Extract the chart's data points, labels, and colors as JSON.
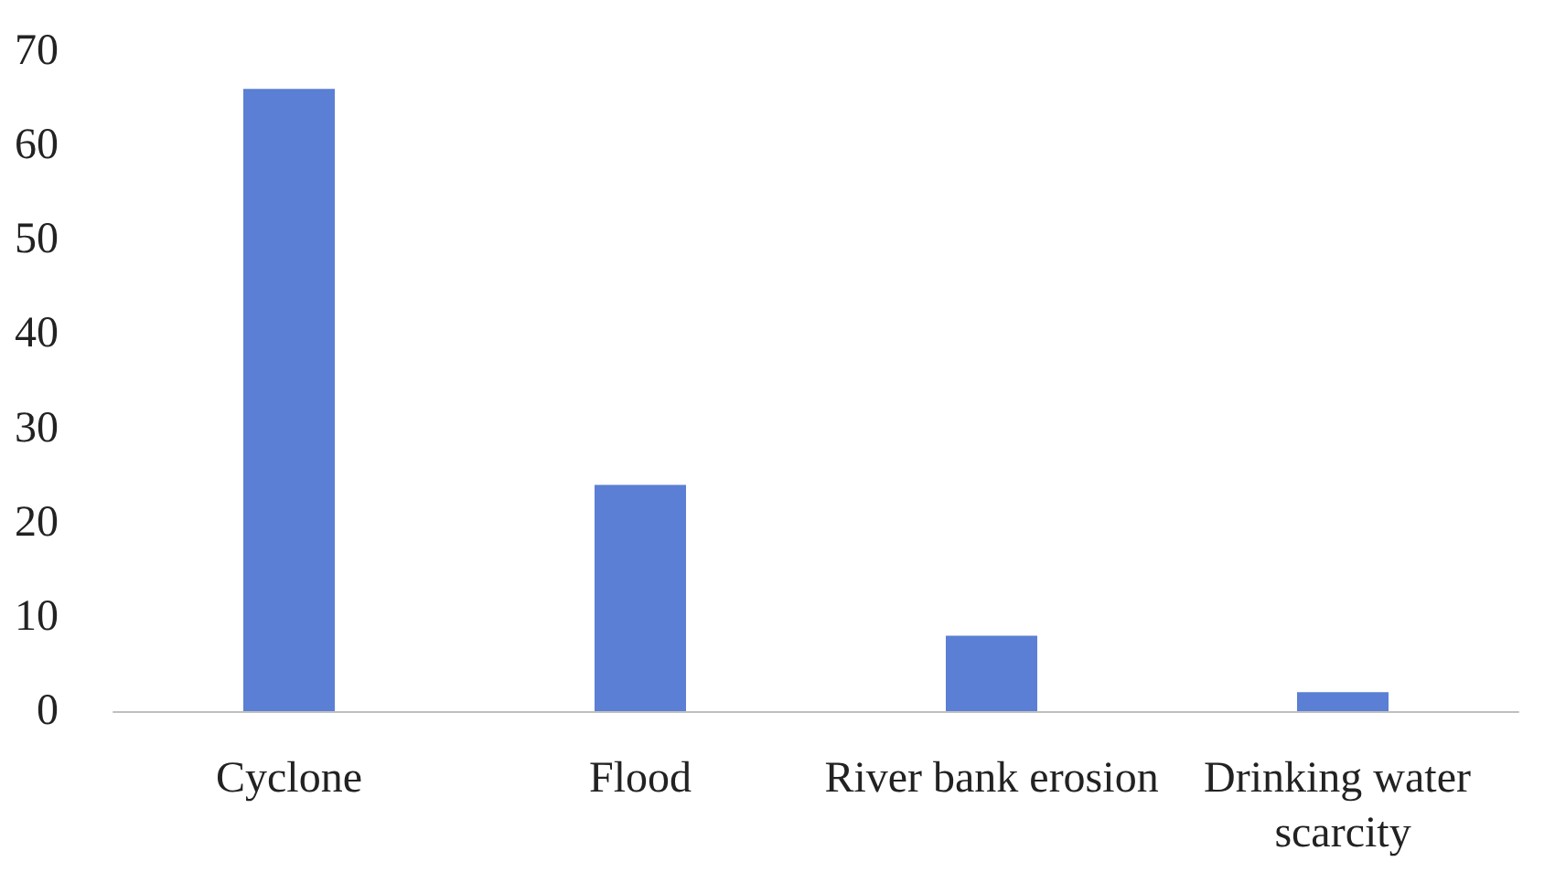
{
  "chart_data": {
    "type": "bar",
    "categories": [
      "Cyclone",
      "Flood",
      "River bank erosion",
      "Drinking water scarcity"
    ],
    "values": [
      66,
      24,
      8,
      2
    ],
    "color": "#5a7fd4",
    "ylim": [
      0,
      70
    ],
    "yticks": [
      0,
      10,
      20,
      30,
      40,
      50,
      60,
      70
    ],
    "grid": false
  }
}
